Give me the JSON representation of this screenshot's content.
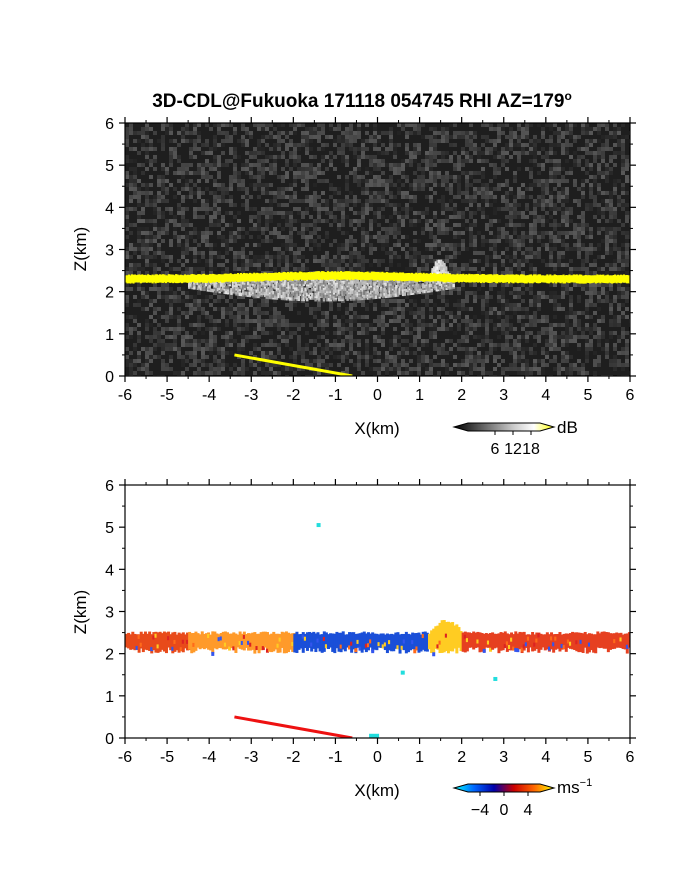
{
  "figure": {
    "title": "3D-CDL@Fukuoka 171118 054745 RHI AZ=179",
    "title_superscript": "o"
  },
  "chart_data": [
    {
      "type": "heatmap",
      "panel": "top",
      "quantity": "intensity",
      "xlabel": "X(km)",
      "ylabel": "Z(km)",
      "xlim": [
        -6,
        6
      ],
      "ylim": [
        0,
        6
      ],
      "xticks": [
        "-6",
        "-5",
        "-4",
        "-3",
        "-2",
        "-1",
        "0",
        "1",
        "2",
        "3",
        "4",
        "5",
        "6"
      ],
      "yticks": [
        "0",
        "1",
        "2",
        "3",
        "4",
        "5",
        "6"
      ],
      "background": "noisy dark gray",
      "layer": {
        "z_center": 2.3,
        "z_halfwidth": 0.08,
        "x_range": [
          -6,
          6
        ],
        "color": "#ffff00"
      },
      "cloud": {
        "x_range": [
          -4.5,
          1.8
        ],
        "z_range": [
          2.0,
          2.5
        ],
        "color": "#d8d8d8"
      },
      "small_feature": {
        "x_range": [
          1.2,
          1.8
        ],
        "z_range": [
          2.4,
          2.8
        ]
      },
      "ground_clutter": {
        "x_range": [
          -3.4,
          -0.6
        ],
        "z_start": 0.5,
        "z_end": 0.0
      },
      "colorbar": {
        "unit": "dB",
        "ticks": [
          "6",
          "12",
          "18"
        ],
        "tick_values": [
          6,
          12,
          18
        ],
        "range": [
          -3,
          21
        ],
        "colors": [
          "#000000",
          "#444444",
          "#888888",
          "#cccccc",
          "#ffffff",
          "#ffff00"
        ]
      }
    },
    {
      "type": "heatmap",
      "panel": "bottom",
      "quantity": "radial velocity",
      "xlabel": "X(km)",
      "ylabel": "Z(km)",
      "xlim": [
        -6,
        6
      ],
      "ylim": [
        0,
        6
      ],
      "xticks": [
        "-6",
        "-5",
        "-4",
        "-3",
        "-2",
        "-1",
        "0",
        "1",
        "2",
        "3",
        "4",
        "5",
        "6"
      ],
      "yticks": [
        "0",
        "1",
        "2",
        "3",
        "4",
        "5",
        "6"
      ],
      "background": "white",
      "layer": {
        "z_range": [
          2.15,
          2.45
        ],
        "x_range": [
          -6,
          6
        ]
      },
      "segments": [
        {
          "x_range": [
            -6.0,
            -4.5
          ],
          "color": "#e84a1a"
        },
        {
          "x_range": [
            -4.5,
            -2.0
          ],
          "color": "#ff9a2a"
        },
        {
          "x_range": [
            -2.0,
            1.2
          ],
          "color": "#1a4fd8"
        },
        {
          "x_range": [
            1.2,
            2.0
          ],
          "color": "#ffcc22"
        },
        {
          "x_range": [
            2.0,
            6.0
          ],
          "color": "#e64020"
        }
      ],
      "scattered_points": [
        {
          "x": -1.4,
          "z": 5.05,
          "color": "#22dddd"
        },
        {
          "x": 0.6,
          "z": 1.55,
          "color": "#22dddd"
        },
        {
          "x": 2.8,
          "z": 1.4,
          "color": "#22dddd"
        }
      ],
      "ground_clutter": {
        "x_range": [
          -3.4,
          -0.6
        ],
        "z_start": 0.5,
        "z_end": 0.0,
        "color": "#ee1111"
      },
      "colorbar": {
        "unit": "ms",
        "unit_superscript": "−1",
        "ticks": [
          "−4",
          "0",
          "4"
        ],
        "tick_values": [
          -4,
          0,
          4
        ],
        "range": [
          -6,
          6
        ],
        "colors": [
          "#00ffff",
          "#0066ff",
          "#0000aa",
          "#cc0000",
          "#ff6600",
          "#ffff00"
        ]
      }
    }
  ]
}
